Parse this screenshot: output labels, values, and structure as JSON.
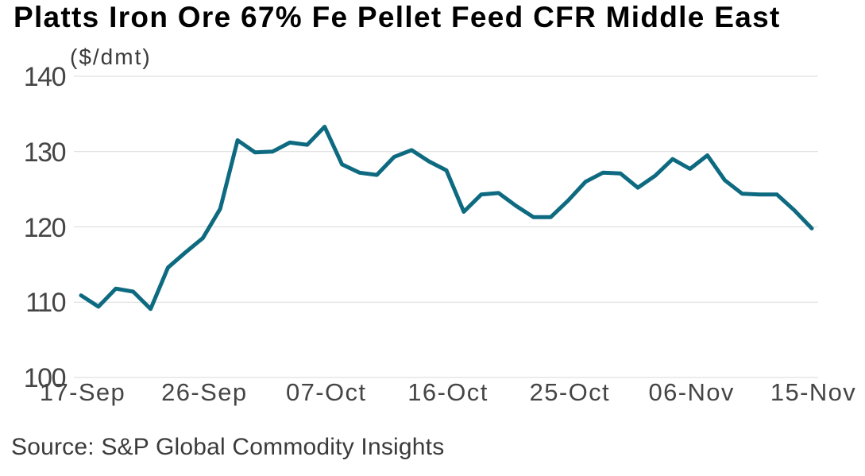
{
  "title": "Platts Iron Ore 67% Fe Pellet Feed CFR Middle East",
  "unit_label": "($/dmt)",
  "source": "Source: S&P Global Commodity Insights",
  "colors": {
    "line": "#0e6a80",
    "grid": "#d9d9d9",
    "tick_text": "#454545",
    "title_text": "#000000",
    "annotation_text": "#3b3b3b",
    "background": "#ffffff"
  },
  "chart_data": {
    "type": "line",
    "title": "Platts Iron Ore 67% Fe Pellet Feed CFR Middle East",
    "ylabel": "($/dmt)",
    "ylim": [
      100,
      140
    ],
    "yticks": [
      100,
      110,
      120,
      130,
      140
    ],
    "grid": "horizontal",
    "legend": "none",
    "xtick_labels": [
      "17-Sep",
      "26-Sep",
      "07-Oct",
      "16-Oct",
      "25-Oct",
      "06-Nov",
      "15-Nov"
    ],
    "xtick_indices": [
      0,
      7,
      14,
      21,
      28,
      35,
      42
    ],
    "x": [
      "17-Sep",
      "18-Sep",
      "19-Sep",
      "20-Sep",
      "23-Sep",
      "24-Sep",
      "25-Sep",
      "26-Sep",
      "27-Sep",
      "30-Sep",
      "01-Oct",
      "02-Oct",
      "03-Oct",
      "04-Oct",
      "07-Oct",
      "08-Oct",
      "09-Oct",
      "10-Oct",
      "11-Oct",
      "14-Oct",
      "15-Oct",
      "16-Oct",
      "17-Oct",
      "18-Oct",
      "21-Oct",
      "22-Oct",
      "23-Oct",
      "24-Oct",
      "25-Oct",
      "28-Oct",
      "29-Oct",
      "30-Oct",
      "31-Oct",
      "04-Nov",
      "05-Nov",
      "06-Nov",
      "07-Nov",
      "08-Nov",
      "11-Nov",
      "12-Nov",
      "13-Nov",
      "14-Nov",
      "15-Nov"
    ],
    "values": [
      110.9,
      109.4,
      111.8,
      111.4,
      109.1,
      114.6,
      116.6,
      118.5,
      122.4,
      131.5,
      129.9,
      130.0,
      131.2,
      130.9,
      133.3,
      128.3,
      127.2,
      126.9,
      129.3,
      130.2,
      128.7,
      127.5,
      122.0,
      124.3,
      124.5,
      122.8,
      121.3,
      121.3,
      123.5,
      126.0,
      127.2,
      127.1,
      125.2,
      126.8,
      129.0,
      127.7,
      129.5,
      126.2,
      124.4,
      124.3,
      124.3,
      122.2,
      119.8
    ]
  }
}
